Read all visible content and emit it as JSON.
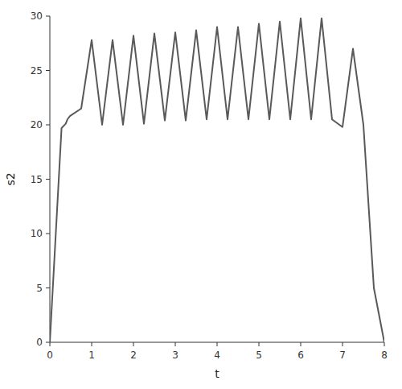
{
  "chart_data": {
    "type": "line",
    "x": [
      0,
      0.28,
      0.38,
      0.42,
      0.48,
      0.75,
      1.0,
      1.25,
      1.5,
      1.75,
      2.0,
      2.25,
      2.5,
      2.75,
      3.0,
      3.25,
      3.5,
      3.75,
      4.0,
      4.25,
      4.5,
      4.75,
      5.0,
      5.25,
      5.5,
      5.75,
      6.0,
      6.25,
      6.5,
      6.75,
      7.0,
      7.25,
      7.5,
      7.75,
      8.0
    ],
    "values": [
      0,
      19.7,
      20.1,
      20.5,
      20.8,
      21.5,
      27.8,
      20.0,
      27.8,
      20.0,
      28.2,
      20.1,
      28.4,
      20.4,
      28.5,
      20.4,
      28.7,
      20.5,
      29.0,
      20.5,
      29.0,
      20.5,
      29.3,
      20.5,
      29.5,
      20.5,
      29.8,
      20.5,
      29.8,
      20.5,
      19.8,
      27.0,
      20.0,
      5.0,
      0.0
    ],
    "color": "#595959",
    "xlabel": "t",
    "ylabel": "s2",
    "xlim": [
      0,
      8
    ],
    "ylim": [
      0,
      30
    ],
    "xticks": [
      0,
      1,
      2,
      3,
      4,
      5,
      6,
      7,
      8
    ],
    "yticks": [
      0,
      5,
      10,
      15,
      20,
      25,
      30
    ],
    "grid": false
  }
}
